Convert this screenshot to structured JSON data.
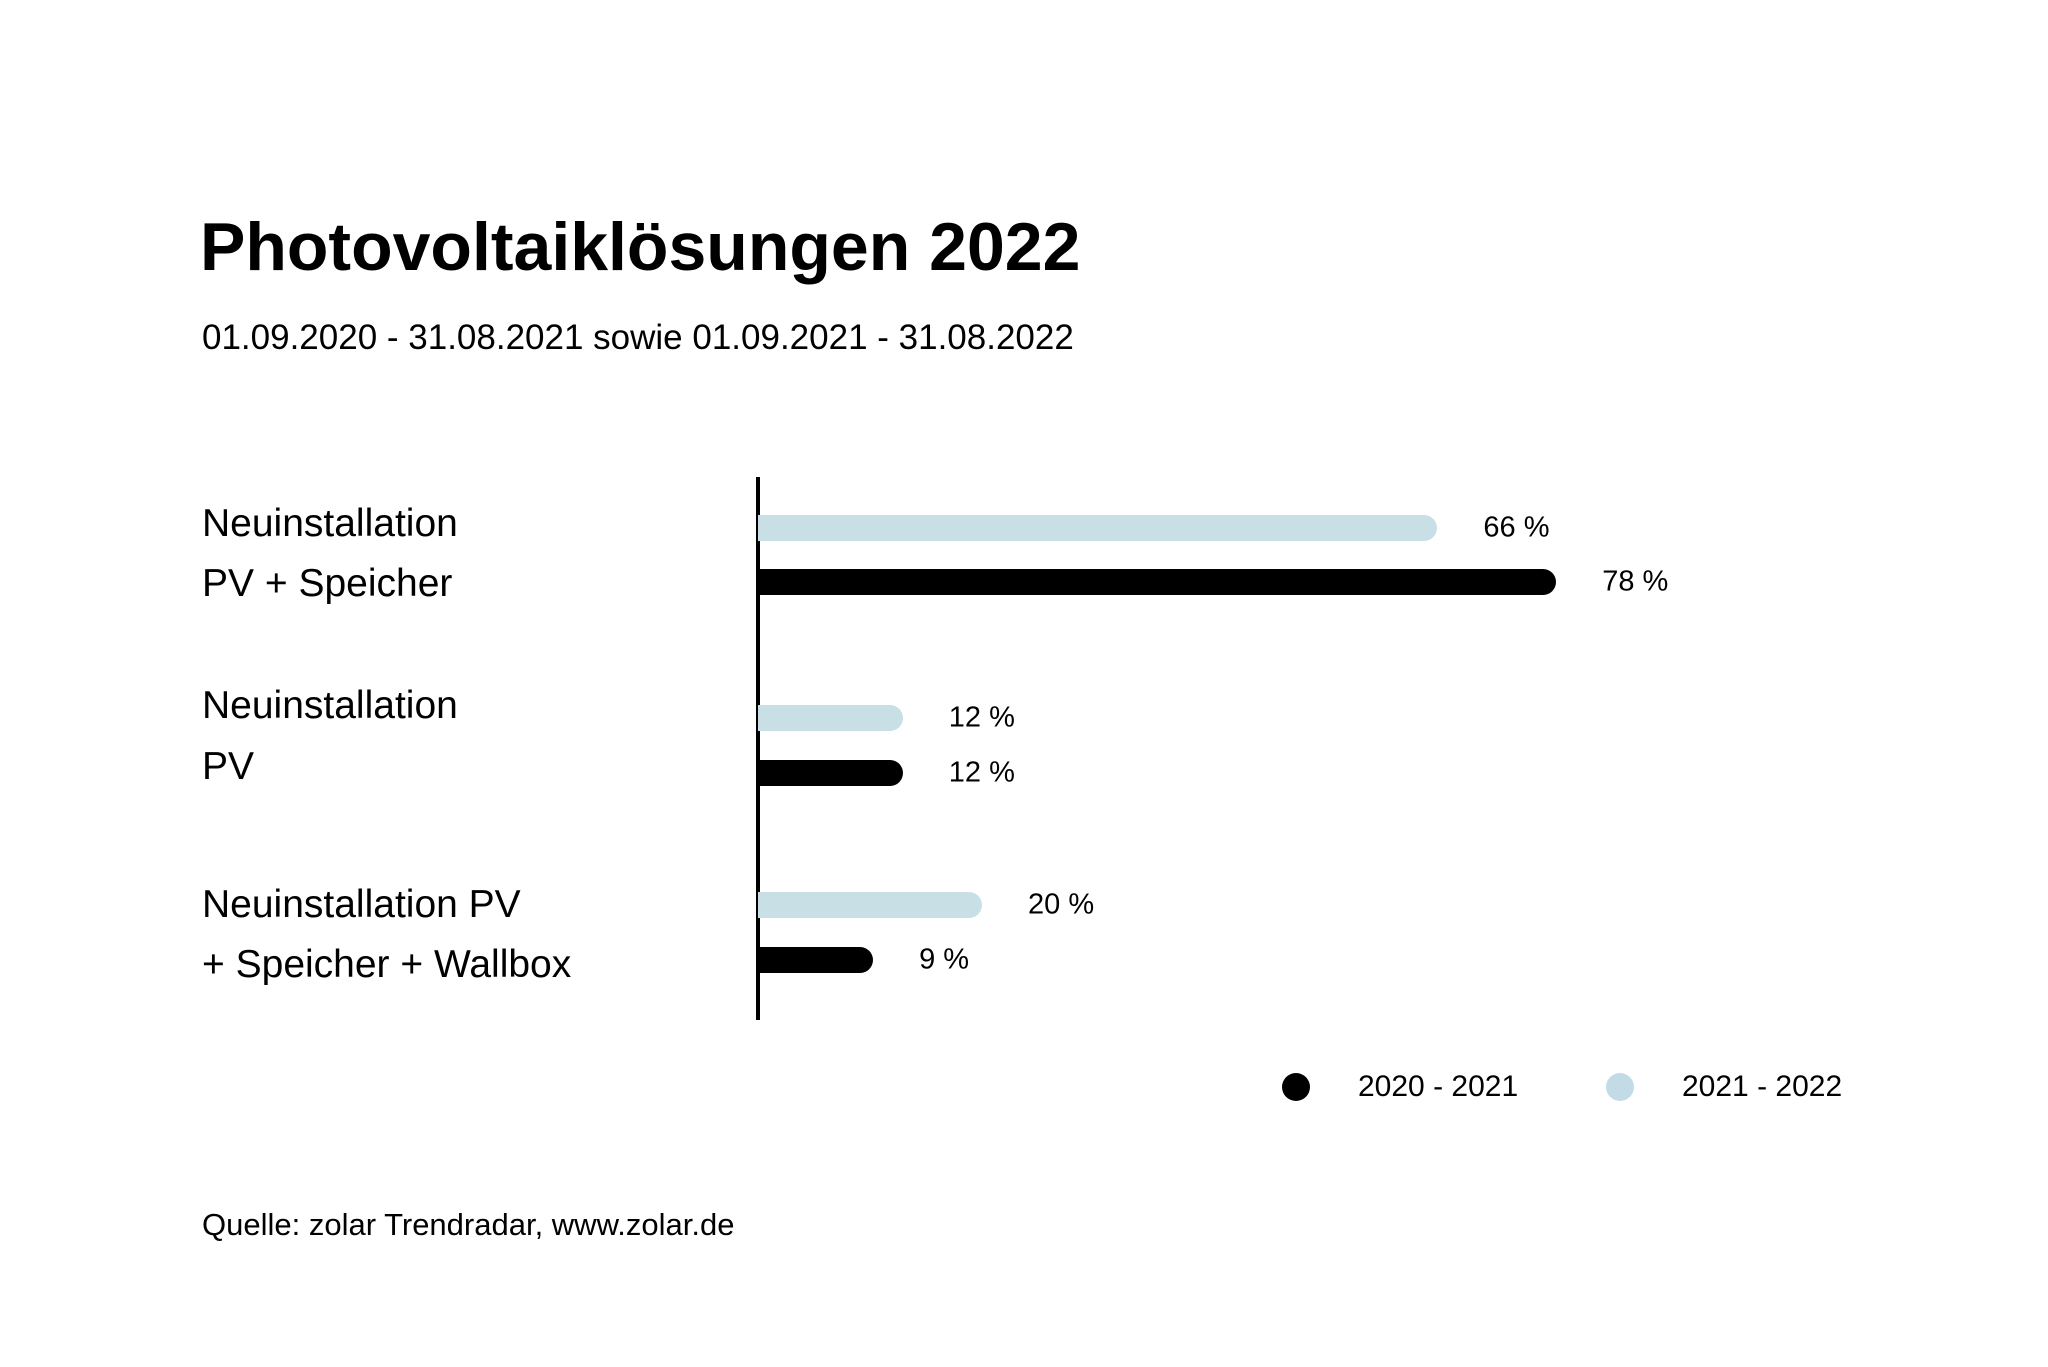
{
  "chart_data": {
    "type": "bar",
    "orientation": "horizontal",
    "title": "Photovoltaiklösungen 2022",
    "subtitle": "01.09.2020 - 31.08.2021 sowie 01.09.2021 - 31.08.2022",
    "categories": [
      [
        "Neuinstallation",
        "PV + Speicher"
      ],
      [
        "Neuinstallation",
        "PV"
      ],
      [
        "Neuinstallation PV",
        "+ Speicher + Wallbox"
      ]
    ],
    "series": [
      {
        "name": "2021 - 2022",
        "color": "#c8e0e5",
        "legend_color": "#c2dbe6",
        "values": [
          66,
          12,
          20
        ],
        "labels": [
          "66 %",
          "12 %",
          "20 %"
        ]
      },
      {
        "name": "2020 - 2021",
        "color": "#000000",
        "values": [
          78,
          12,
          9
        ],
        "labels": [
          "78 %",
          "12 %",
          "9 %"
        ]
      }
    ],
    "legend": {
      "placement": "bottom-right",
      "order": [
        "2020 - 2021",
        "2021 - 2022"
      ]
    },
    "xlabel": "",
    "ylabel": "",
    "unit": "%",
    "source": "Quelle: zolar Trendradar, www.zolar.de"
  }
}
